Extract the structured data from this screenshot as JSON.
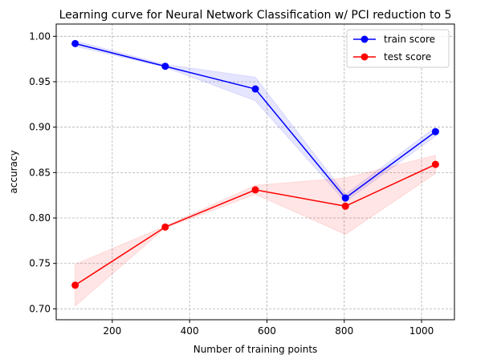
{
  "chart_data": {
    "type": "line",
    "title": "Learning curve for Neural Network Classification w/ PCI reduction to 5",
    "xlabel": "Number of training points",
    "ylabel": "accuracy",
    "xlim": [
      55,
      1085
    ],
    "ylim": [
      0.688,
      1.0135
    ],
    "x_ticks": [
      200,
      400,
      600,
      800,
      1000
    ],
    "y_ticks": [
      0.7,
      0.75,
      0.8,
      0.85,
      0.9,
      0.95,
      1.0
    ],
    "grid": true,
    "legend_position": "top-right",
    "x": [
      104,
      337,
      570,
      803,
      1036
    ],
    "series": [
      {
        "name": "train score",
        "color": "#0000ff",
        "band_color": "#0000ff",
        "values": [
          0.992,
          0.967,
          0.942,
          0.822,
          0.895
        ],
        "band_low": [
          0.989,
          0.966,
          0.929,
          0.818,
          0.89
        ],
        "band_high": [
          0.995,
          0.969,
          0.955,
          0.826,
          0.9
        ]
      },
      {
        "name": "test score",
        "color": "#ff0000",
        "band_color": "#ff0000",
        "values": [
          0.726,
          0.79,
          0.831,
          0.813,
          0.859
        ],
        "band_low": [
          0.703,
          0.789,
          0.826,
          0.782,
          0.849
        ],
        "band_high": [
          0.749,
          0.791,
          0.836,
          0.844,
          0.869
        ]
      }
    ]
  }
}
